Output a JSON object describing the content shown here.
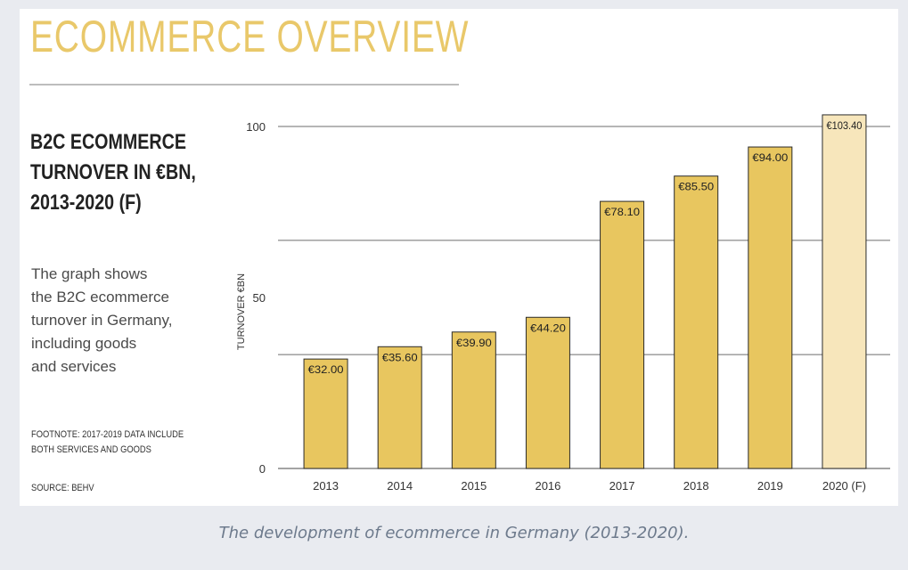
{
  "main_title": "ECOMMERCE OVERVIEW",
  "heading_lines": [
    "B2C ECOMMERCE",
    "TURNOVER IN €BN,",
    "2013-2020 (F)"
  ],
  "description_lines": [
    "The graph shows",
    "the B2C ecommerce",
    "turnover in Germany,",
    "including goods",
    "and services"
  ],
  "footnote_lines": [
    "FOOTNOTE: 2017-2019 DATA INCLUDE",
    "BOTH SERVICES AND GOODS"
  ],
  "source": "SOURCE: BEHV",
  "caption": "The development of ecommerce in Germany (2013-2020).",
  "chart_data": {
    "type": "bar",
    "categories": [
      "2013",
      "2014",
      "2015",
      "2016",
      "2017",
      "2018",
      "2019",
      "2020 (F)"
    ],
    "values": [
      32.0,
      35.6,
      39.9,
      44.2,
      78.1,
      85.5,
      94.0,
      103.4
    ],
    "value_labels": [
      "€32.00",
      "€35.60",
      "€39.90",
      "€44.20",
      "€78.10",
      "€85.50",
      "€94.00",
      "€103.40"
    ],
    "forecast": [
      false,
      false,
      false,
      false,
      false,
      false,
      false,
      true
    ],
    "ylabel": "TURNOVER €BN",
    "ylim": [
      0,
      100
    ],
    "yticks": [
      0,
      50,
      100
    ],
    "gridlines": [
      33.3,
      66.7,
      100
    ],
    "colors": {
      "bar": "#e8c65f",
      "forecast_bar": "#f7e6bb",
      "bar_stroke": "#2b2b2b",
      "grid": "#6e6e6e"
    }
  }
}
